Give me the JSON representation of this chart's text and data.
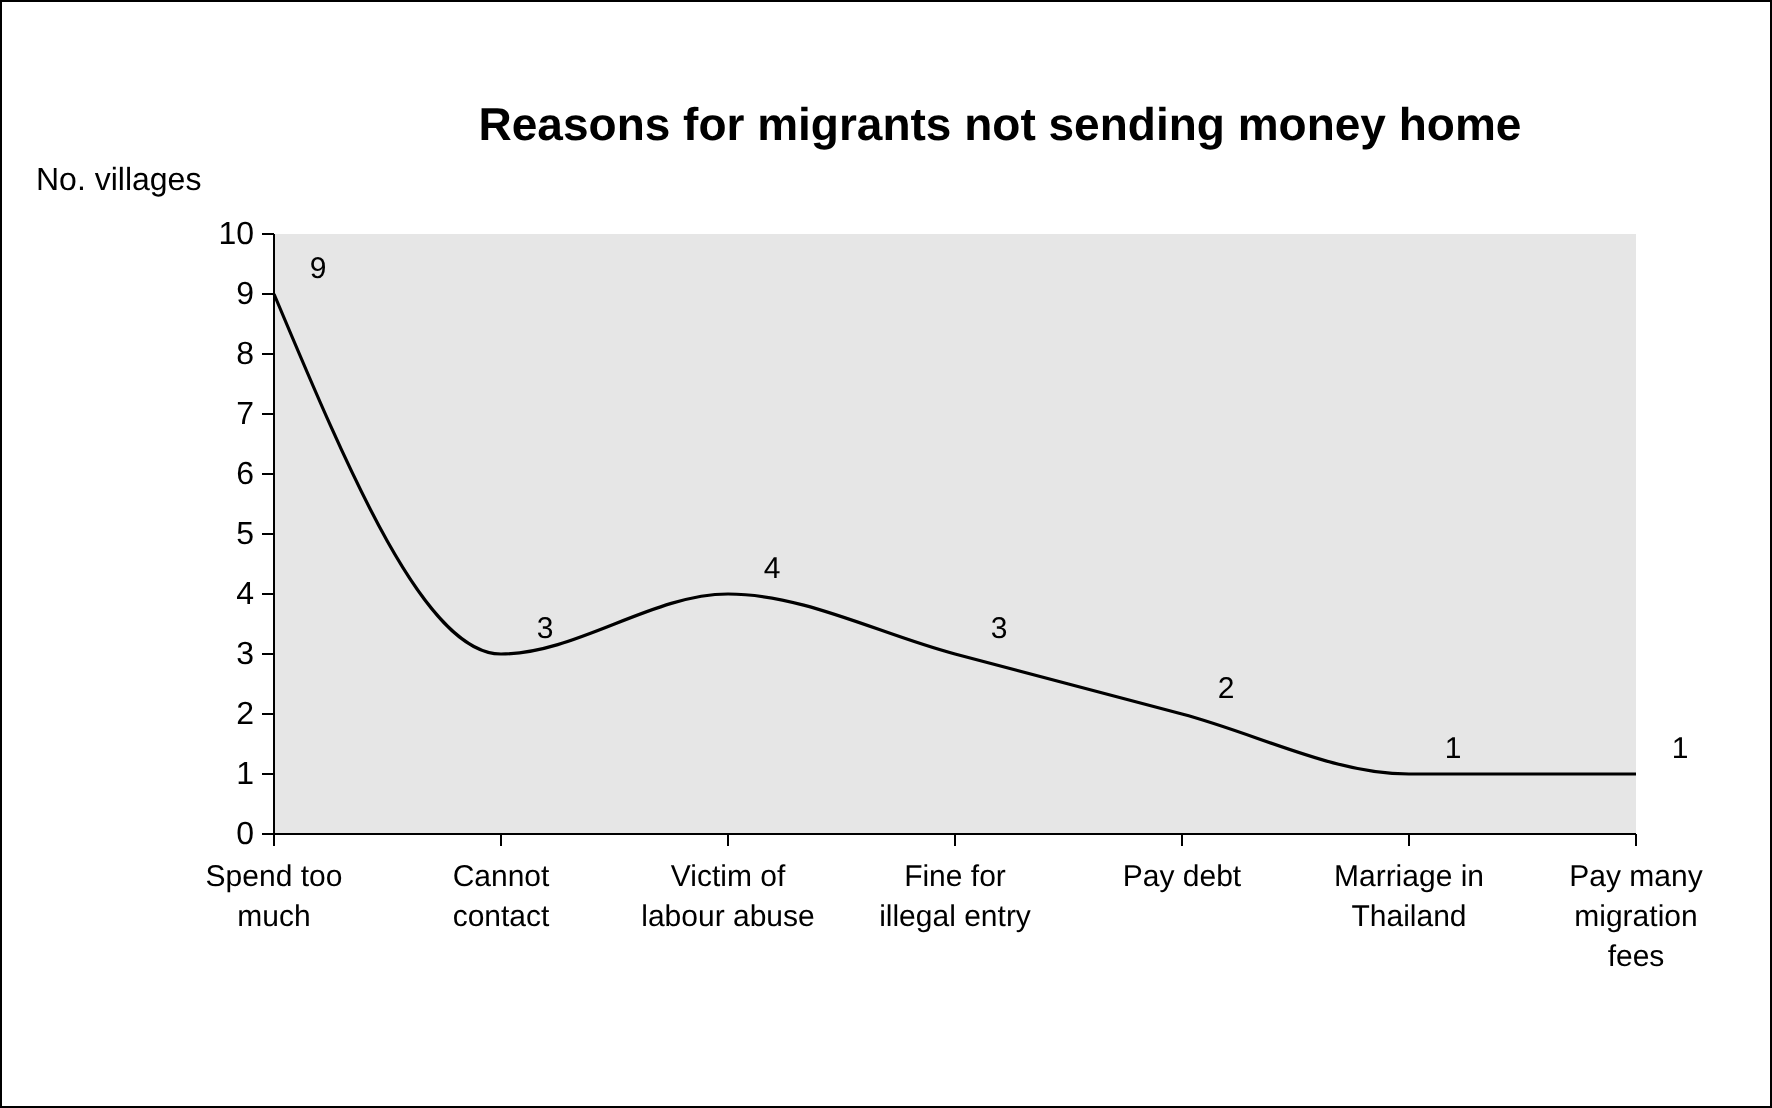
{
  "chart_data": {
    "type": "line",
    "title": "Reasons for migrants not sending money home",
    "ylabel": "No. villages",
    "categories": [
      "Spend too much",
      "Cannot contact",
      "Victim of labour abuse",
      "Fine for illegal entry",
      "Pay debt",
      "Marriage in Thailand",
      "Pay many migration fees"
    ],
    "series": [
      {
        "color": "#000000",
        "values": [
          9,
          3,
          4,
          3,
          2,
          1,
          1
        ]
      }
    ],
    "ylim": [
      0,
      10
    ],
    "yticks": [
      0,
      1,
      2,
      3,
      4,
      5,
      6,
      7,
      8,
      9,
      10
    ],
    "grid": false,
    "marker": "none",
    "line_style": "solid",
    "data_labels": true
  }
}
